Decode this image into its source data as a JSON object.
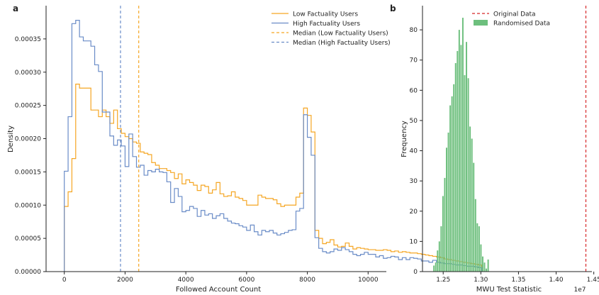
{
  "panels": {
    "a_label": "a",
    "b_label": "b"
  },
  "colors": {
    "low": "#f5a623",
    "high": "#6a8cc7",
    "original": "#d62728",
    "randomised": "#6dbf7d",
    "axis": "#222222"
  },
  "chart_data": [
    {
      "type": "line",
      "panel": "a",
      "step": true,
      "xlabel": "Followed Account Count",
      "ylabel": "Density",
      "xlim": [
        -600,
        10600
      ],
      "ylim": [
        0,
        0.0004
      ],
      "xticks": [
        0,
        2000,
        4000,
        6000,
        8000,
        10000
      ],
      "xtick_labels": [
        "0",
        "2000",
        "4000",
        "6000",
        "8000",
        "10000"
      ],
      "yticks": [
        0,
        5e-05,
        0.0001,
        0.00015,
        0.0002,
        0.00025,
        0.0003,
        0.00035
      ],
      "ytick_labels": [
        "0.00000",
        "0.00005",
        "0.00010",
        "0.00015",
        "0.00020",
        "0.00025",
        "0.00030",
        "0.00035"
      ],
      "legend": "top-right",
      "bin_edges_start": 0,
      "bin_width": 125,
      "series": [
        {
          "name": "Low Factuality Users",
          "values": [
            9.8e-05,
            0.00012,
            0.00017,
            0.000282,
            0.000276,
            0.000276,
            0.000276,
            0.000243,
            0.000243,
            0.000233,
            0.000243,
            0.000233,
            0.000223,
            0.000243,
            0.000215,
            0.000208,
            0.000203,
            0.0002,
            0.000195,
            0.000193,
            0.00018,
            0.000178,
            0.000176,
            0.000164,
            0.00016,
            0.000155,
            0.000155,
            0.000152,
            0.000149,
            0.00014,
            0.000147,
            0.000132,
            0.000138,
            0.000134,
            0.00013,
            0.000122,
            0.00013,
            0.000128,
            0.000118,
            0.000123,
            0.000134,
            0.000117,
            0.000113,
            0.000114,
            0.00012,
            0.000112,
            0.00011,
            0.000107,
            0.0001,
            0.0001,
            0.0001,
            0.000115,
            0.000112,
            0.00011,
            0.00011,
            0.000108,
            0.000102,
            9.8e-05,
            0.0001,
            0.0001,
            0.0001,
            0.000112,
            0.000118,
            0.000246,
            0.000235,
            0.00021,
            6.2e-05,
            5e-05,
            4.2e-05,
            4.4e-05,
            4.8e-05,
            4e-05,
            3.7e-05,
            3.8e-05,
            4.3e-05,
            3.8e-05,
            3.4e-05,
            3.6e-05,
            3.5e-05,
            3.4e-05,
            3.3e-05,
            3.3e-05,
            3.2e-05,
            3.2e-05,
            3.3e-05,
            3.2e-05,
            3e-05,
            3.1e-05,
            2.9e-05,
            3e-05,
            2.9e-05,
            2.8e-05,
            2.8e-05,
            2.7e-05,
            2.6e-05,
            2.5e-05,
            2.4e-05,
            2.3e-05,
            2.2e-05,
            2.1e-05,
            1.9e-05,
            1.8e-05,
            1.7e-05,
            1.6e-05,
            1.5e-05,
            1.4e-05,
            1.3e-05,
            1.2e-05,
            1.1e-05,
            1e-05
          ],
          "median": 2450
        },
        {
          "name": "High Factuality Users",
          "values": [
            0.000151,
            0.000233,
            0.000373,
            0.000378,
            0.000353,
            0.000347,
            0.000347,
            0.000339,
            0.000311,
            0.000301,
            0.00024,
            0.00024,
            0.000204,
            0.00019,
            0.000198,
            0.000189,
            0.000158,
            0.000207,
            0.000173,
            0.000157,
            0.00016,
            0.000145,
            0.000152,
            0.00015,
            0.000154,
            0.00015,
            0.000149,
            0.000135,
            0.000104,
            0.000125,
            0.000113,
            9e-05,
            9.2e-05,
            9.8e-05,
            9.5e-05,
            8.3e-05,
            9.2e-05,
            8.5e-05,
            8.7e-05,
            8e-05,
            8.4e-05,
            8.7e-05,
            8e-05,
            7.6e-05,
            7.3e-05,
            7.2e-05,
            6.9e-05,
            6.7e-05,
            6.2e-05,
            7e-05,
            6e-05,
            5.5e-05,
            6.2e-05,
            6e-05,
            6.2e-05,
            5.8e-05,
            5.5e-05,
            5.7e-05,
            5.9e-05,
            6.2e-05,
            6.3e-05,
            9.1e-05,
            9.5e-05,
            0.000236,
            0.000202,
            0.000175,
            5.1e-05,
            3.5e-05,
            3e-05,
            2.8e-05,
            3e-05,
            3.4e-05,
            3.2e-05,
            3.6e-05,
            3.3e-05,
            3e-05,
            2.6e-05,
            2.4e-05,
            2.6e-05,
            2.9e-05,
            2.6e-05,
            2.6e-05,
            2.2e-05,
            2.4e-05,
            2e-05,
            2.1e-05,
            2.3e-05,
            2.2e-05,
            1.8e-05,
            2.1e-05,
            1.8e-05,
            2.1e-05,
            2e-05,
            1.9e-05,
            1.6e-05,
            1.6e-05,
            1.4e-05,
            1.7e-05,
            1.4e-05,
            1.3e-05,
            1.2e-05,
            1.2e-05,
            1.1e-05,
            1e-05,
            1e-05,
            9e-06,
            8e-06,
            8e-06,
            7e-06,
            6e-06
          ],
          "median": 1850
        }
      ],
      "legend_entries": [
        "Low Factuality Users",
        "High Factuality Users",
        "Median (Low Factuality Users)",
        "Median (High Factuality Users)"
      ]
    },
    {
      "type": "bar",
      "panel": "b",
      "histogram": true,
      "xlabel": "MWU Test Statistic",
      "ylabel": "Frequency",
      "x_scale_note": "1e7",
      "xlim": [
        1.2225,
        1.4475
      ],
      "ylim": [
        0,
        88
      ],
      "xticks": [
        1.25,
        1.3,
        1.35,
        1.4,
        1.45
      ],
      "xtick_labels": [
        "1.25",
        "1.30",
        "1.35",
        "1.40",
        "1.45"
      ],
      "yticks": [
        0,
        10,
        20,
        30,
        40,
        50,
        60,
        70,
        80
      ],
      "ytick_labels": [
        "0",
        "10",
        "20",
        "30",
        "40",
        "50",
        "60",
        "70",
        "80"
      ],
      "legend": "top-center",
      "bin_start": 1.2365,
      "bin_width": 0.0024,
      "values": [
        2,
        3,
        7,
        10,
        15,
        25,
        31,
        41,
        46,
        55,
        58,
        62,
        69,
        73,
        80,
        75,
        84,
        65,
        76,
        64,
        48,
        44,
        36,
        24,
        16,
        15,
        9,
        5,
        3,
        1,
        4
      ],
      "original_value": 1.4395,
      "legend_entries": [
        "Original Data",
        "Randomised Data"
      ]
    }
  ]
}
